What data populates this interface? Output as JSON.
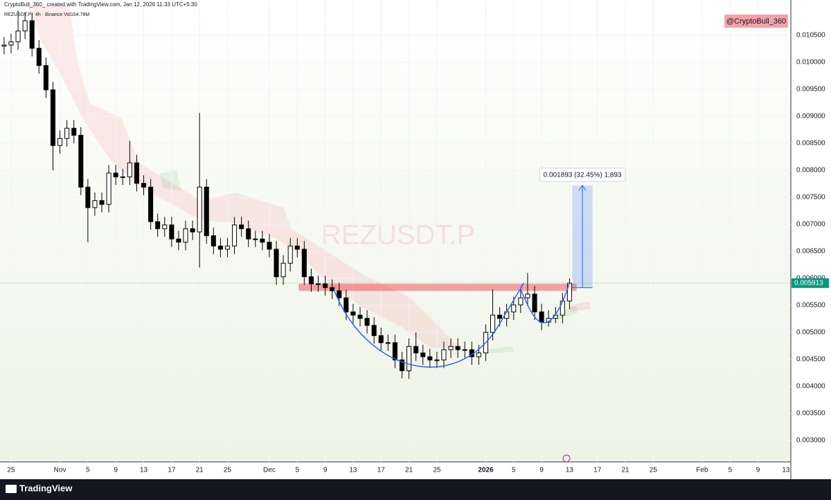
{
  "chart_data": {
    "type": "candlestick",
    "title": "CryptoBull_360_ created with TradingView.com, Jan 12, 2026 11:33 UTC+5:30",
    "subtitle": "REZUSDT.P · 4h · Binance  Vol164.78M",
    "watermark": "REZUSDT.P",
    "author_tag": "@CryptoBull_360",
    "footer_brand": "TradingView",
    "up_color": "#ffffff",
    "down_color": "#000000",
    "x": [
      -1,
      0,
      1,
      2,
      3,
      4,
      5,
      6,
      7,
      8,
      9,
      10,
      11,
      12,
      13,
      14,
      15,
      16,
      17,
      18,
      19,
      20,
      21,
      22,
      23,
      24,
      25,
      26,
      27,
      28,
      29,
      30,
      31,
      32,
      33,
      34,
      35,
      36,
      37,
      38,
      39,
      40,
      41,
      42,
      43,
      44,
      45,
      46,
      47,
      48,
      49,
      50,
      51,
      52,
      53,
      54,
      55,
      56,
      57,
      58,
      59,
      60,
      61,
      62,
      63,
      64,
      65,
      66,
      67,
      68,
      69,
      70,
      71,
      72,
      73,
      74,
      75,
      76,
      77,
      78,
      79,
      80
    ],
    "open": [
      0.0103,
      0.01032,
      0.01038,
      0.01058,
      0.01077,
      0.01026,
      0.00994,
      0.00949,
      0.00846,
      0.00859,
      0.00878,
      0.00865,
      0.00769,
      0.00731,
      0.00744,
      0.00737,
      0.00795,
      0.00788,
      0.00788,
      0.00814,
      0.00776,
      0.00769,
      0.00705,
      0.00692,
      0.00699,
      0.00673,
      0.00667,
      0.00692,
      0.00686,
      0.00769,
      0.00679,
      0.0066,
      0.00654,
      0.0066,
      0.00699,
      0.00692,
      0.00673,
      0.00673,
      0.00667,
      0.00654,
      0.00603,
      0.00628,
      0.0066,
      0.00654,
      0.00603,
      0.0059,
      0.0059,
      0.00583,
      0.00577,
      0.00564,
      0.00538,
      0.00532,
      0.00526,
      0.00513,
      0.00494,
      0.00481,
      0.00481,
      0.00449,
      0.00429,
      0.00474,
      0.00462,
      0.00455,
      0.00449,
      0.00449,
      0.00468,
      0.00474,
      0.00468,
      0.00468,
      0.00455,
      0.00462,
      0.005,
      0.00532,
      0.00526,
      0.00538,
      0.00551,
      0.00564,
      0.00571,
      0.00538,
      0.00519,
      0.00526,
      0.00532,
      0.00558
    ],
    "high": [
      0.01047,
      0.01053,
      0.01096,
      0.01092,
      0.01092,
      0.01041,
      0.01009,
      0.00964,
      0.00874,
      0.00893,
      0.00893,
      0.0088,
      0.00784,
      0.00759,
      0.00759,
      0.0081,
      0.0081,
      0.00803,
      0.00855,
      0.00829,
      0.00791,
      0.00784,
      0.0072,
      0.00714,
      0.00714,
      0.00688,
      0.00707,
      0.00707,
      0.00906,
      0.00784,
      0.00694,
      0.00675,
      0.00675,
      0.00714,
      0.00714,
      0.00707,
      0.00688,
      0.00688,
      0.00682,
      0.00669,
      0.00643,
      0.00675,
      0.00675,
      0.00669,
      0.00618,
      0.00605,
      0.00605,
      0.00598,
      0.00592,
      0.00579,
      0.00553,
      0.00547,
      0.00541,
      0.00528,
      0.00509,
      0.00496,
      0.00496,
      0.00464,
      0.00489,
      0.005,
      0.00477,
      0.0047,
      0.00464,
      0.00483,
      0.00489,
      0.00489,
      0.00483,
      0.00483,
      0.00477,
      0.00515,
      0.0058,
      0.00547,
      0.00553,
      0.00566,
      0.00579,
      0.0061,
      0.00586,
      0.00553,
      0.00541,
      0.00547,
      0.00573,
      0.006
    ],
    "low": [
      0.01015,
      0.01017,
      0.01023,
      0.01043,
      0.01011,
      0.00979,
      0.00934,
      0.008,
      0.00831,
      0.00844,
      0.0085,
      0.00754,
      0.00667,
      0.00716,
      0.00722,
      0.00722,
      0.00773,
      0.00773,
      0.00773,
      0.00761,
      0.00754,
      0.0069,
      0.00677,
      0.00677,
      0.00658,
      0.00652,
      0.00652,
      0.00671,
      0.0062,
      0.00664,
      0.00645,
      0.00639,
      0.00639,
      0.00645,
      0.00677,
      0.00658,
      0.00658,
      0.00652,
      0.00639,
      0.00588,
      0.00588,
      0.00613,
      0.00639,
      0.00588,
      0.00575,
      0.00575,
      0.00568,
      0.00562,
      0.00549,
      0.00523,
      0.00517,
      0.00511,
      0.00498,
      0.00479,
      0.00466,
      0.00466,
      0.00434,
      0.00415,
      0.00414,
      0.00447,
      0.0044,
      0.00434,
      0.00434,
      0.00434,
      0.00453,
      0.00453,
      0.00453,
      0.0044,
      0.0044,
      0.00447,
      0.00485,
      0.00511,
      0.00511,
      0.00523,
      0.00536,
      0.00549,
      0.00523,
      0.00504,
      0.00511,
      0.00517,
      0.00517,
      0.00543
    ],
    "close": [
      0.01032,
      0.01038,
      0.01058,
      0.01077,
      0.01026,
      0.00994,
      0.00949,
      0.00846,
      0.00859,
      0.00878,
      0.00865,
      0.00769,
      0.00731,
      0.00744,
      0.00737,
      0.00795,
      0.00788,
      0.00788,
      0.00814,
      0.00776,
      0.00769,
      0.00705,
      0.00692,
      0.00699,
      0.00673,
      0.00667,
      0.00692,
      0.00686,
      0.00769,
      0.00679,
      0.0066,
      0.00654,
      0.0066,
      0.00699,
      0.00692,
      0.00673,
      0.00673,
      0.00667,
      0.00654,
      0.00603,
      0.00628,
      0.0066,
      0.00654,
      0.00603,
      0.0059,
      0.0059,
      0.00583,
      0.00577,
      0.00564,
      0.00538,
      0.00532,
      0.00526,
      0.00513,
      0.00494,
      0.00481,
      0.00481,
      0.00449,
      0.00429,
      0.00474,
      0.00462,
      0.00455,
      0.00449,
      0.00449,
      0.00468,
      0.00474,
      0.00468,
      0.00468,
      0.00455,
      0.00462,
      0.005,
      0.00532,
      0.00526,
      0.00538,
      0.00551,
      0.00564,
      0.00571,
      0.00538,
      0.00519,
      0.00526,
      0.00532,
      0.00558,
      0.00591
    ],
    "xlim": [
      -1.587,
      111.706
    ],
    "xticks": [
      {
        "value": 0,
        "label": "25"
      },
      {
        "value": 7,
        "label": "Nov"
      },
      {
        "value": 11,
        "label": "5"
      },
      {
        "value": 15,
        "label": "9"
      },
      {
        "value": 19,
        "label": "13"
      },
      {
        "value": 23,
        "label": "17"
      },
      {
        "value": 27,
        "label": "21"
      },
      {
        "value": 31,
        "label": "25"
      },
      {
        "value": 37,
        "label": "Dec"
      },
      {
        "value": 41,
        "label": "5"
      },
      {
        "value": 45,
        "label": "9"
      },
      {
        "value": 49,
        "label": "13"
      },
      {
        "value": 53,
        "label": "17"
      },
      {
        "value": 57,
        "label": "21"
      },
      {
        "value": 61,
        "label": "25"
      },
      {
        "value": 68,
        "label": "2026"
      },
      {
        "value": 72,
        "label": "5"
      },
      {
        "value": 76,
        "label": "9"
      },
      {
        "value": 80,
        "label": "13"
      },
      {
        "value": 84,
        "label": "17"
      },
      {
        "value": 88,
        "label": "21"
      },
      {
        "value": 92,
        "label": "25"
      },
      {
        "value": 99,
        "label": "Feb"
      },
      {
        "value": 103,
        "label": "5"
      },
      {
        "value": 107,
        "label": "9"
      },
      {
        "value": 111,
        "label": "13"
      }
    ],
    "ylim": [
      0.0026026,
      0.011154
    ],
    "yticks": [
      {
        "value": 0.003,
        "label": "0.003000"
      },
      {
        "value": 0.0035,
        "label": "0.003500"
      },
      {
        "value": 0.004,
        "label": "0.004000"
      },
      {
        "value": 0.0045,
        "label": "0.004500"
      },
      {
        "value": 0.005,
        "label": "0.005000"
      },
      {
        "value": 0.0055,
        "label": "0.005500"
      },
      {
        "value": 0.006,
        "label": "0.006000"
      },
      {
        "value": 0.0065,
        "label": "0.006500"
      },
      {
        "value": 0.007,
        "label": "0.007000"
      },
      {
        "value": 0.0075,
        "label": "0.007500"
      },
      {
        "value": 0.008,
        "label": "0.008000"
      },
      {
        "value": 0.0085,
        "label": "0.008500"
      },
      {
        "value": 0.009,
        "label": "0.009000"
      },
      {
        "value": 0.0095,
        "label": "0.009500"
      },
      {
        "value": 0.01,
        "label": "0.010000"
      },
      {
        "value": 0.0105,
        "label": "0.010500"
      }
    ],
    "last_price": 0.005913,
    "resistance_zone": {
      "low": 0.00577,
      "high": 0.0059,
      "x_start": 41.2,
      "x_end": 81
    },
    "measure": {
      "label": "0.001893 (32.45%) 1,893",
      "from": 0.005827,
      "to": 0.00772,
      "x_start": 80.4,
      "x_end": 83.3
    }
  }
}
